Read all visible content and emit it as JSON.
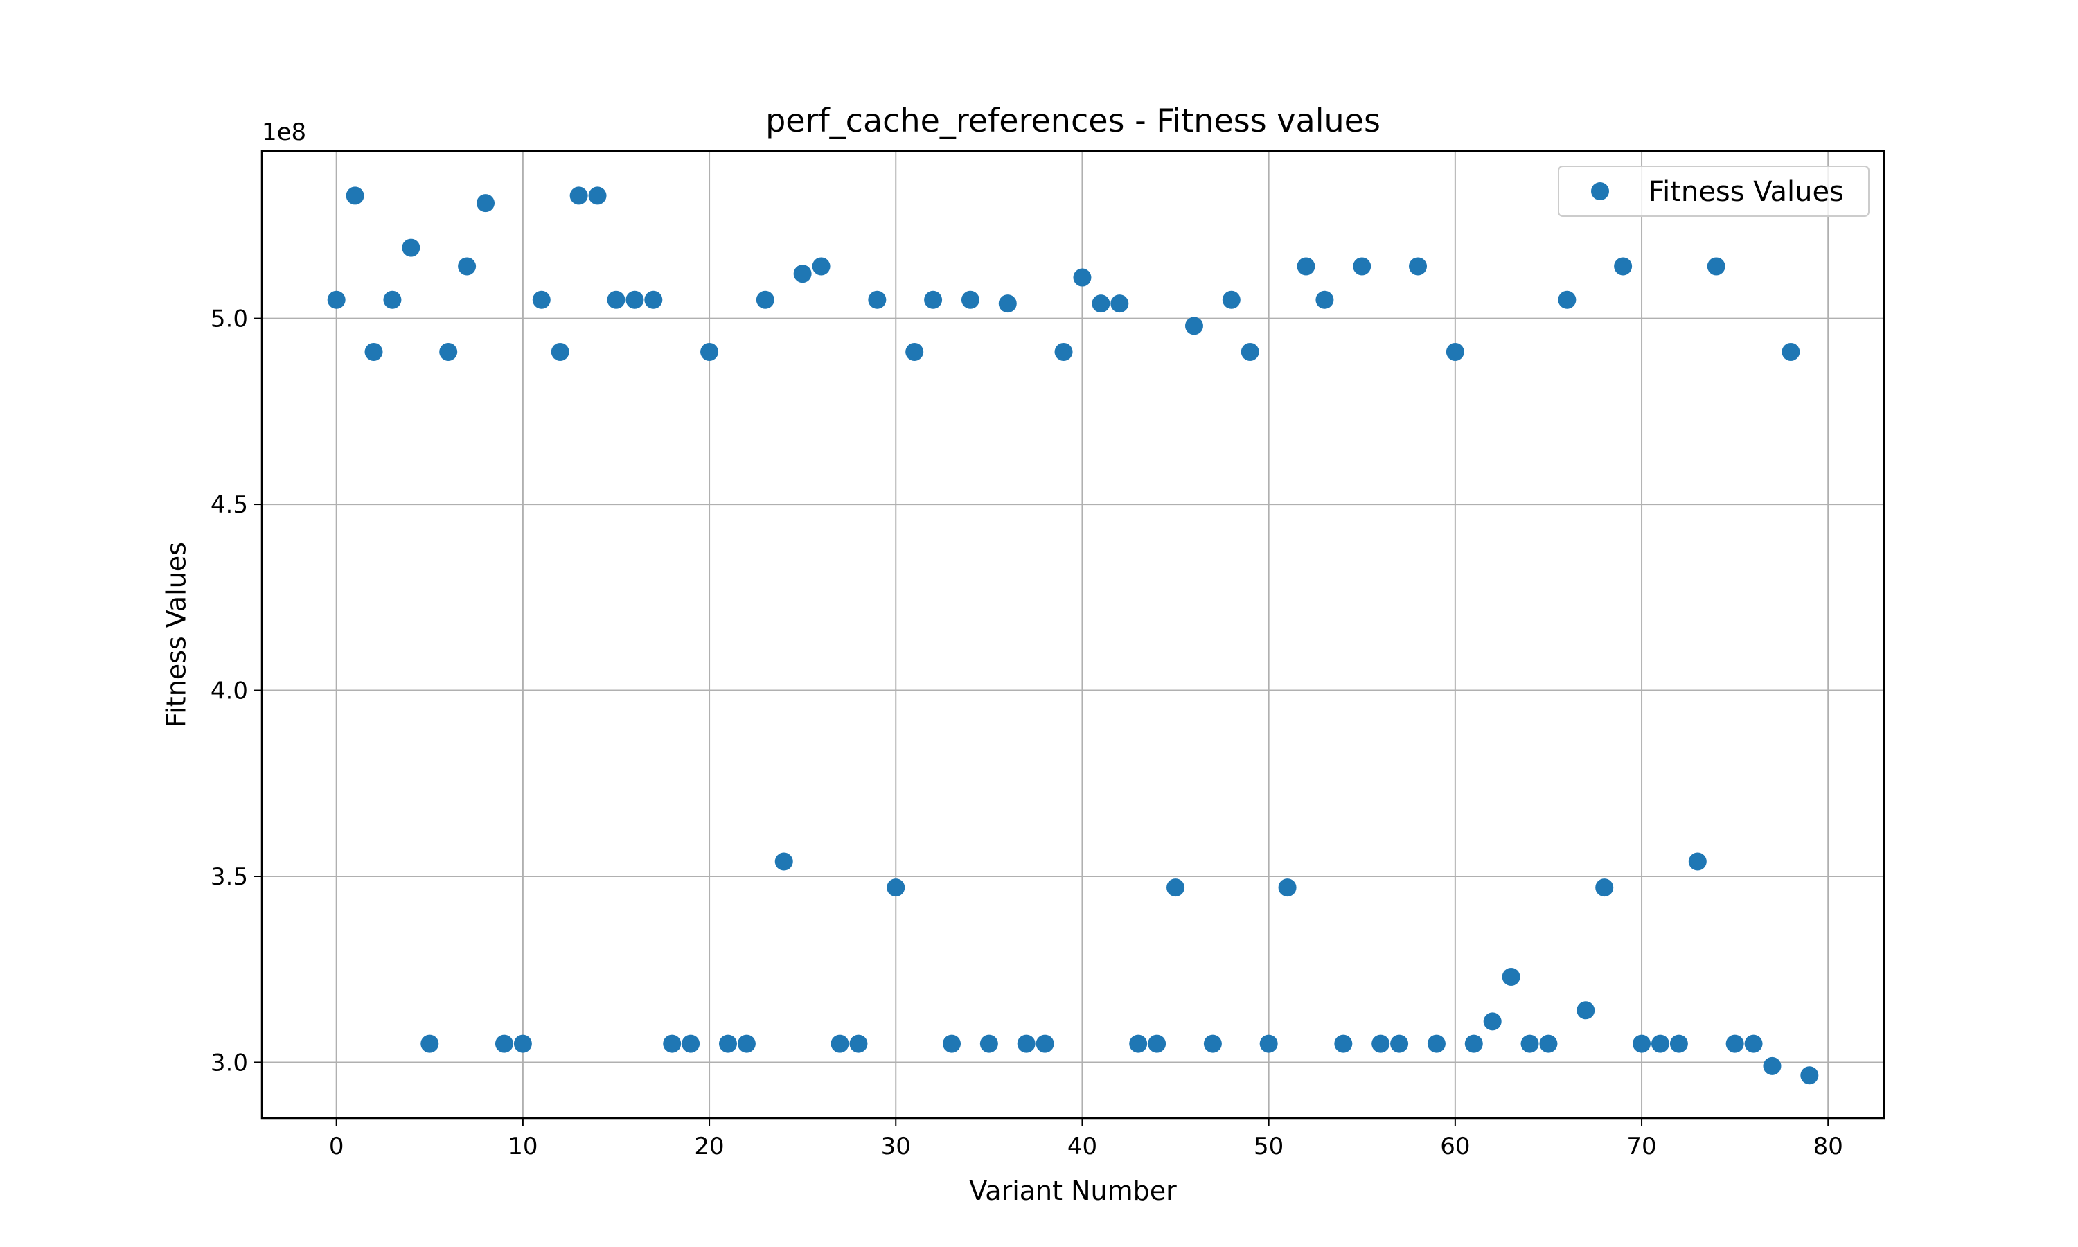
{
  "chart_data": {
    "type": "scatter",
    "title": "perf_cache_references - Fitness values",
    "xlabel": "Variant Number",
    "ylabel": "Fitness Values",
    "y_scale_label": "1e8",
    "xlim": [
      -4,
      83
    ],
    "ylim": [
      2.85,
      5.45
    ],
    "x_ticks": [
      0,
      10,
      20,
      30,
      40,
      50,
      60,
      70,
      80
    ],
    "y_ticks": [
      3.0,
      3.5,
      4.0,
      4.5,
      5.0
    ],
    "x_tick_labels": [
      "0",
      "10",
      "20",
      "30",
      "40",
      "50",
      "60",
      "70",
      "80"
    ],
    "y_tick_labels": [
      "3.0",
      "3.5",
      "4.0",
      "4.5",
      "5.0"
    ],
    "grid": true,
    "legend_position": "top-right",
    "series": [
      {
        "name": "Fitness Values",
        "color": "#1f77b4",
        "x": [
          0,
          1,
          2,
          3,
          4,
          5,
          6,
          7,
          8,
          9,
          10,
          11,
          12,
          13,
          14,
          15,
          16,
          17,
          18,
          19,
          20,
          21,
          22,
          23,
          24,
          25,
          26,
          27,
          28,
          29,
          30,
          31,
          32,
          33,
          34,
          35,
          36,
          37,
          38,
          39,
          40,
          41,
          42,
          43,
          44,
          45,
          46,
          47,
          48,
          49,
          50,
          51,
          52,
          53,
          54,
          55,
          56,
          57,
          58,
          59,
          60,
          61,
          62,
          63,
          64,
          65,
          66,
          67,
          68,
          69,
          70,
          71,
          72,
          73,
          74,
          75,
          76,
          77,
          78,
          79
        ],
        "y": [
          5.05,
          5.33,
          4.91,
          5.05,
          5.19,
          3.05,
          4.91,
          5.14,
          5.31,
          3.05,
          3.05,
          5.05,
          4.91,
          5.33,
          5.33,
          5.05,
          5.05,
          5.05,
          3.05,
          3.05,
          4.91,
          3.05,
          3.05,
          5.05,
          3.54,
          5.12,
          5.14,
          3.05,
          3.05,
          5.05,
          3.47,
          4.91,
          5.05,
          3.05,
          5.05,
          3.05,
          5.04,
          3.05,
          3.05,
          4.91,
          5.11,
          5.04,
          5.04,
          3.05,
          3.05,
          3.47,
          4.98,
          3.05,
          5.05,
          4.91,
          3.05,
          3.47,
          5.14,
          5.05,
          3.05,
          5.14,
          3.05,
          3.05,
          5.14,
          3.05,
          4.91,
          3.05,
          3.11,
          3.23,
          3.05,
          3.05,
          5.05,
          3.14,
          3.47,
          5.14,
          3.05,
          3.05,
          3.05,
          3.54,
          5.14,
          3.05,
          3.05,
          2.99,
          4.91,
          2.965
        ]
      }
    ]
  }
}
